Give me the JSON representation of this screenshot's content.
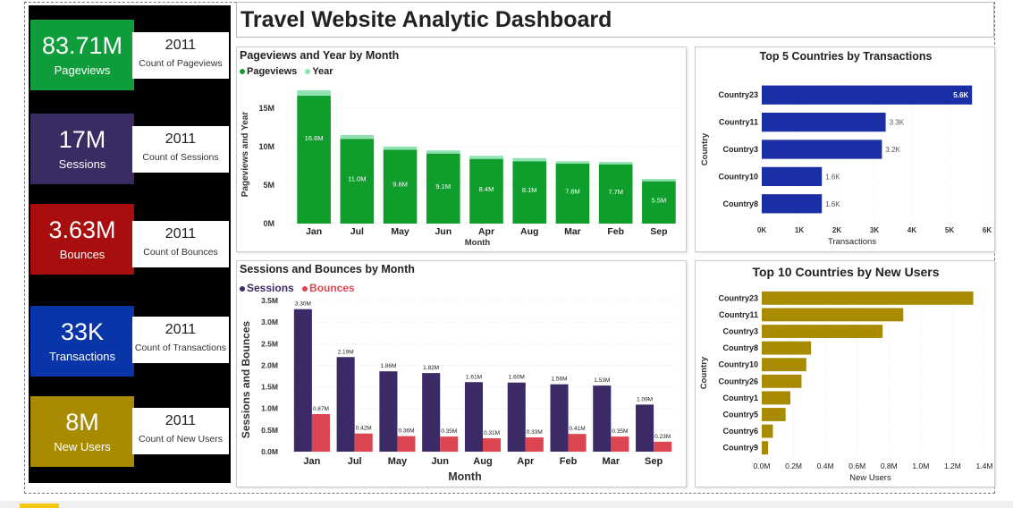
{
  "title": "Travel Website Analytic Dashboard",
  "kpis": [
    {
      "value": "83.71M",
      "label": "Pageviews",
      "year": "2011",
      "desc": "Count of Pageviews",
      "color": "#0f9d3c"
    },
    {
      "value": "17M",
      "label": "Sessions",
      "year": "2011",
      "desc": "Count of Sessions",
      "color": "#3a2b63"
    },
    {
      "value": "3.63M",
      "label": "Bounces",
      "year": "2011",
      "desc": "Count of Bounces",
      "color": "#a90e0e"
    },
    {
      "value": "33K",
      "label": "Transactions",
      "year": "2011",
      "desc": "Count of Transactions",
      "color": "#0a35a8"
    },
    {
      "value": "8M",
      "label": "New Users",
      "year": "2011",
      "desc": "Count of New Users",
      "color": "#a88b00"
    }
  ],
  "legend_pageviews": {
    "a": "Pageviews",
    "b": "Year"
  },
  "legend_sessions": {
    "a": "Sessions",
    "b": "Bounces"
  },
  "chart_data": [
    {
      "type": "bar",
      "stacked": true,
      "title": "Pageviews and Year by Month",
      "xlabel": "Month",
      "ylabel": "Pageviews and Year",
      "categories": [
        "Jan",
        "Jul",
        "May",
        "Jun",
        "Apr",
        "Aug",
        "Mar",
        "Feb",
        "Sep"
      ],
      "series": [
        {
          "name": "Pageviews",
          "values": [
            16.6,
            11.0,
            9.6,
            9.1,
            8.4,
            8.1,
            7.8,
            7.7,
            5.5
          ],
          "labels": [
            "16.6M",
            "11.0M",
            "9.6M",
            "9.1M",
            "8.4M",
            "8.1M",
            "7.8M",
            "7.7M",
            "5.5M"
          ],
          "color": "#0f9d2c"
        },
        {
          "name": "Year",
          "values": [
            0.7,
            0.5,
            0.4,
            0.4,
            0.4,
            0.4,
            0.3,
            0.3,
            0.3
          ],
          "color": "#8fe3b0"
        }
      ],
      "yticks": [
        "0M",
        "5M",
        "10M",
        "15M"
      ],
      "ylim": [
        0,
        18
      ]
    },
    {
      "type": "bar",
      "orientation": "horizontal",
      "title": "Top 5 Countries by Transactions",
      "xlabel": "Transactions",
      "ylabel": "Country",
      "categories": [
        "Country23",
        "Country11",
        "Country3",
        "Country10",
        "Country8"
      ],
      "values": [
        5.6,
        3.3,
        3.2,
        1.6,
        1.6
      ],
      "labels": [
        "5.6K",
        "3.3K",
        "3.2K",
        "1.6K",
        "1.6K"
      ],
      "xticks": [
        "0K",
        "1K",
        "2K",
        "3K",
        "4K",
        "5K",
        "6K"
      ],
      "xlim": [
        0,
        6
      ],
      "color": "#1a2ea6"
    },
    {
      "type": "bar",
      "grouped": true,
      "title": "Sessions and Bounces by Month",
      "xlabel": "Month",
      "ylabel": "Sessions and Bounces",
      "categories": [
        "Jan",
        "Jul",
        "May",
        "Jun",
        "Aug",
        "Apr",
        "Feb",
        "Mar",
        "Sep"
      ],
      "series": [
        {
          "name": "Sessions",
          "values": [
            3.3,
            2.19,
            1.86,
            1.82,
            1.61,
            1.6,
            1.56,
            1.53,
            1.09
          ],
          "labels": [
            "3.30M",
            "2.19M",
            "1.86M",
            "1.82M",
            "1.61M",
            "1.60M",
            "1.56M",
            "1.53M",
            "1.09M"
          ],
          "color": "#3b2a66"
        },
        {
          "name": "Bounces",
          "values": [
            0.87,
            0.42,
            0.36,
            0.35,
            0.31,
            0.33,
            0.41,
            0.35,
            0.23
          ],
          "labels": [
            "0.87M",
            "0.42M",
            "0.36M",
            "0.35M",
            "0.31M",
            "0.33M",
            "0.41M",
            "0.35M",
            "0.23M"
          ],
          "color": "#dd4650"
        }
      ],
      "yticks": [
        "0.0M",
        "0.5M",
        "1.0M",
        "1.5M",
        "2.0M",
        "2.5M",
        "3.0M",
        "3.5M"
      ],
      "ylim": [
        0,
        3.5
      ]
    },
    {
      "type": "bar",
      "orientation": "horizontal",
      "title": "Top 10 Countries by New Users",
      "xlabel": "New Users",
      "ylabel": "Country",
      "categories": [
        "Country23",
        "Country11",
        "Country3",
        "Country8",
        "Country10",
        "Country26",
        "Country1",
        "Country5",
        "Country6",
        "Country9"
      ],
      "values": [
        1.33,
        0.89,
        0.76,
        0.31,
        0.28,
        0.25,
        0.18,
        0.15,
        0.07,
        0.04
      ],
      "xticks": [
        "0.0M",
        "0.2M",
        "0.4M",
        "0.6M",
        "0.8M",
        "1.0M",
        "1.2M",
        "1.4M"
      ],
      "xlim": [
        0,
        1.4
      ],
      "color": "#a88b00"
    }
  ]
}
